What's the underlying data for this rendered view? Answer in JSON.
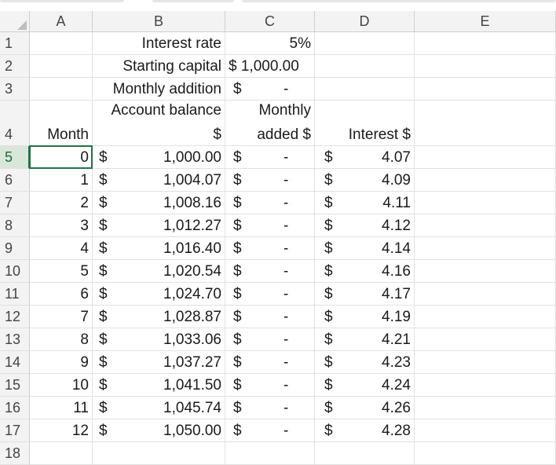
{
  "columns": [
    "A",
    "B",
    "C",
    "D",
    "E"
  ],
  "row_numbers": [
    "1",
    "2",
    "3",
    "4",
    "5",
    "6",
    "7",
    "8",
    "9",
    "10",
    "11",
    "12",
    "13",
    "14",
    "15",
    "16",
    "17",
    "18"
  ],
  "params": {
    "interest_rate_label": "Interest rate",
    "interest_rate_value": "5%",
    "starting_capital_label": "Starting capital",
    "starting_capital_value": "$ 1,000.00",
    "monthly_addition_label": "Monthly addition",
    "monthly_addition_currency": "$",
    "monthly_addition_value": "-"
  },
  "headers": {
    "month": "Month",
    "balance_line1": "Account balance",
    "balance_line2": "$",
    "added_line1": "Monthly",
    "added_line2": "added $",
    "interest": "Interest $"
  },
  "currency": "$",
  "dash": "-",
  "table": [
    {
      "month": "0",
      "balance": "1,000.00",
      "interest": "4.07"
    },
    {
      "month": "1",
      "balance": "1,004.07",
      "interest": "4.09"
    },
    {
      "month": "2",
      "balance": "1,008.16",
      "interest": "4.11"
    },
    {
      "month": "3",
      "balance": "1,012.27",
      "interest": "4.12"
    },
    {
      "month": "4",
      "balance": "1,016.40",
      "interest": "4.14"
    },
    {
      "month": "5",
      "balance": "1,020.54",
      "interest": "4.16"
    },
    {
      "month": "6",
      "balance": "1,024.70",
      "interest": "4.17"
    },
    {
      "month": "7",
      "balance": "1,028.87",
      "interest": "4.19"
    },
    {
      "month": "8",
      "balance": "1,033.06",
      "interest": "4.21"
    },
    {
      "month": "9",
      "balance": "1,037.27",
      "interest": "4.23"
    },
    {
      "month": "10",
      "balance": "1,041.50",
      "interest": "4.24"
    },
    {
      "month": "11",
      "balance": "1,045.74",
      "interest": "4.26"
    },
    {
      "month": "12",
      "balance": "1,050.00",
      "interest": "4.28"
    }
  ],
  "selected_cell": "A5",
  "colors": {
    "selection": "#217346",
    "header_bg": "#f3f3f3",
    "gridline": "#e1e1e1"
  }
}
